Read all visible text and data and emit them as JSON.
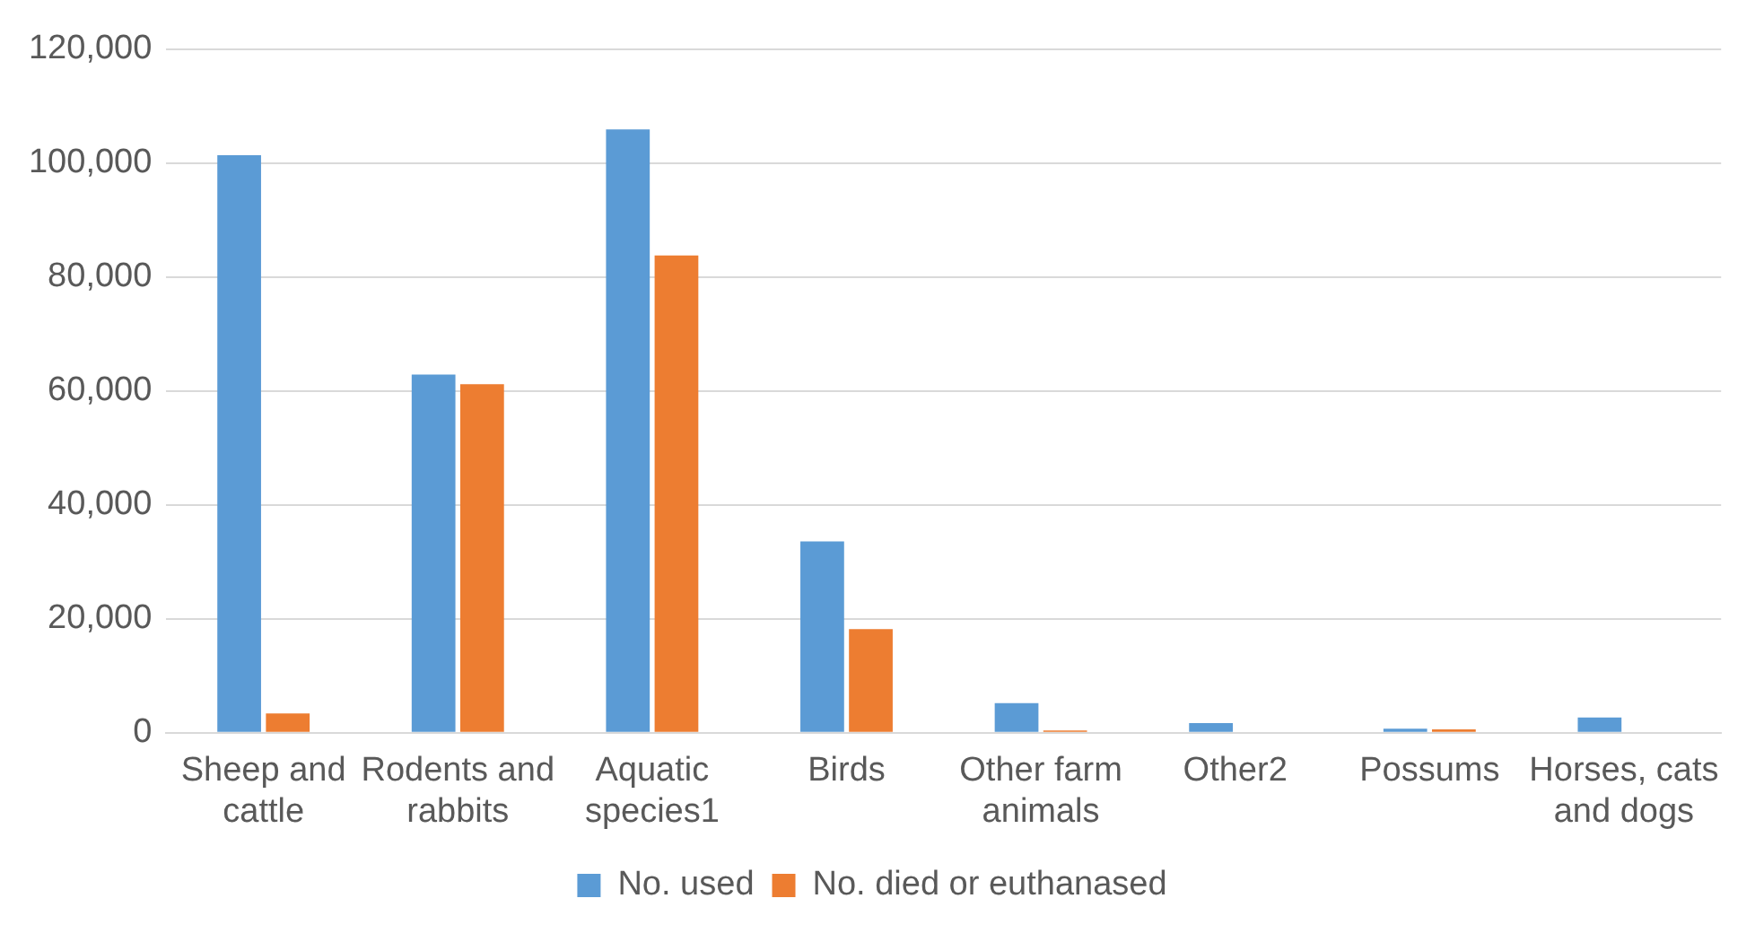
{
  "chart_data": {
    "type": "bar",
    "categories": [
      "Sheep and cattle",
      "Rodents and rabbits",
      "Aquatic species1",
      "Birds",
      "Other farm animals",
      "Other2",
      "Possums",
      "Horses, cats and dogs"
    ],
    "series": [
      {
        "name": "No. used",
        "color": "#5b9bd5",
        "values": [
          101400,
          62900,
          105900,
          33600,
          5200,
          1700,
          700,
          2700
        ]
      },
      {
        "name": "No. died or euthanased",
        "color": "#ed7d31",
        "values": [
          3400,
          61200,
          83800,
          18200,
          400,
          0,
          600,
          0
        ]
      }
    ],
    "ylim": [
      0,
      120000
    ],
    "yticks": [
      {
        "value": 0,
        "label": "0"
      },
      {
        "value": 20000,
        "label": "20,000"
      },
      {
        "value": 40000,
        "label": "40,000"
      },
      {
        "value": 60000,
        "label": "60,000"
      },
      {
        "value": 80000,
        "label": "80,000"
      },
      {
        "value": 100000,
        "label": "100,000"
      },
      {
        "value": 120000,
        "label": "120,000"
      }
    ],
    "grid": "y",
    "legend": "bottom"
  }
}
